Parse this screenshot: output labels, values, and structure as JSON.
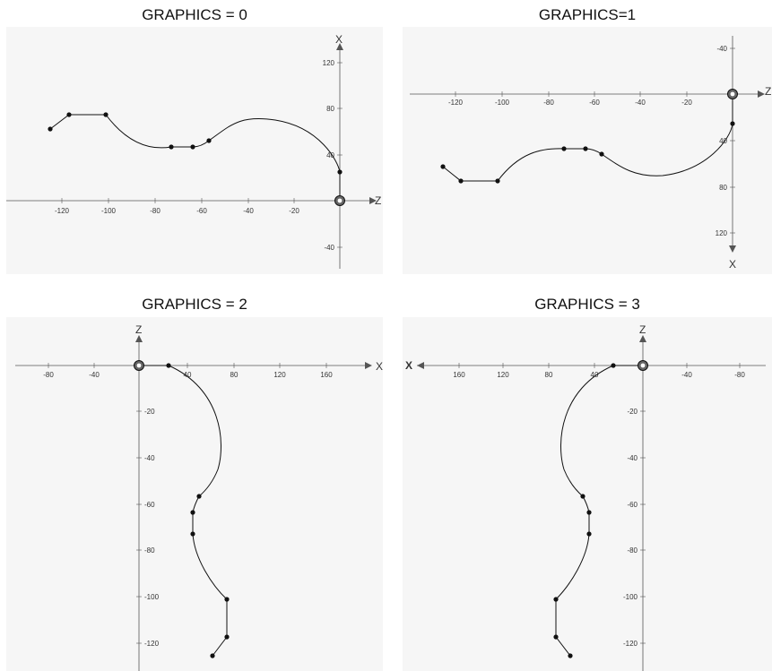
{
  "panels": [
    {
      "title": "GRAPHICS = 0",
      "h_axis_label": "Z",
      "v_axis_label": "X",
      "h_ticks": [
        "-120",
        "-100",
        "-80",
        "-60",
        "-40",
        "-20"
      ],
      "v_ticks": [
        "120",
        "80",
        "40",
        "-40"
      ]
    },
    {
      "title": "GRAPHICS=1",
      "h_axis_label": "Z",
      "v_axis_label": "X",
      "h_ticks": [
        "-120",
        "-100",
        "-80",
        "-60",
        "-40",
        "-20"
      ],
      "v_ticks": [
        "-40",
        "40",
        "80",
        "120"
      ]
    },
    {
      "title": "GRAPHICS = 2",
      "h_axis_label": "X",
      "v_axis_label": "Z",
      "h_ticks": [
        "-80",
        "-40",
        "40",
        "80",
        "120",
        "160"
      ],
      "v_ticks": [
        "-20",
        "-40",
        "-60",
        "-80",
        "-100",
        "-120"
      ]
    },
    {
      "title": "GRAPHICS = 3",
      "h_axis_label": "X",
      "v_axis_label": "Z",
      "h_ticks": [
        "160",
        "120",
        "80",
        "40",
        "-40",
        "-80"
      ],
      "v_ticks": [
        "-20",
        "-40",
        "-60",
        "-80",
        "-100",
        "-120"
      ]
    }
  ]
}
